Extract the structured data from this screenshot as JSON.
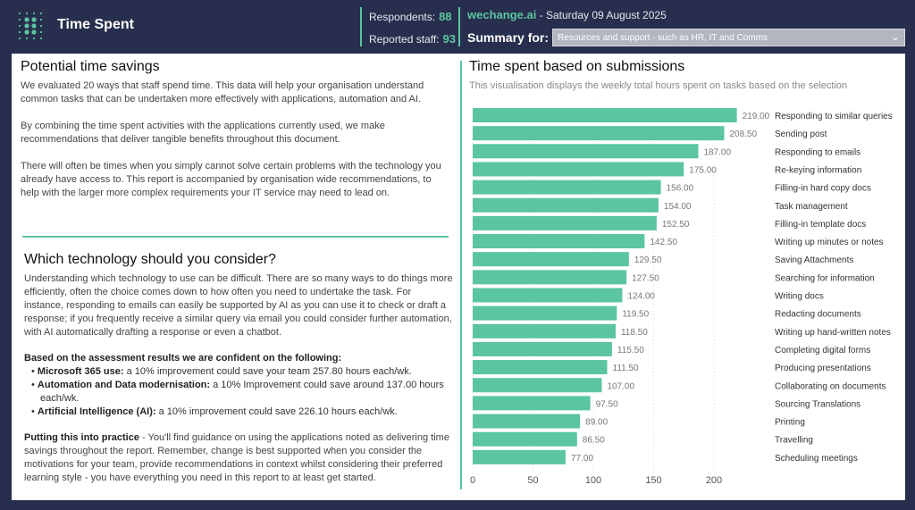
{
  "header": {
    "title": "Time Spent",
    "respondents_label": "Respondents:",
    "respondents": "88",
    "staff_label": "Reported staff:",
    "staff": "93",
    "brand": "wechange.ai",
    "date": " - Saturday 09 August 2025",
    "summary_label": "Summary for:",
    "summary_value": "Resources and support - such as HR, IT and Comms"
  },
  "colors": {
    "background": "#282e4d",
    "accent": "#5ac5a0",
    "bar": "#5ac5a0"
  },
  "left": {
    "title1": "Potential time savings",
    "p1": "We evaluated 20 ways that staff spend time. This data will help your organisation understand common tasks that can be undertaken more effectively with applications, automation and AI.",
    "p2": "By combining the time spent activities with the applications currently used, we make recommendations that deliver tangible benefits throughout this document.",
    "p3": "There will often be times when you simply cannot solve certain problems with the technology you already have access to. This report is accompanied by organisation wide recommendations, to help with the larger more complex requirements your IT service may need to lead on.",
    "title2": "Which technology should you consider?",
    "p4": "Understanding which technology to use can be difficult. There are so many ways to do things more efficiently, often the choice comes down to how often you need to undertake the task. For instance, responding to emails can easily be supported by AI as you can use it to check or draft a response; if you frequently receive a similar query via email you could consider further automation, with AI automatically drafting a response or even a chatbot.",
    "confident": "Based on the assessment results we are confident on the following:",
    "bullets": [
      {
        "bold": "Microsoft 365 use:",
        "text": " a 10% improvement could save your team 257.80 hours each/wk."
      },
      {
        "bold": "Automation and Data modernisation:",
        "text": " a 10% Improvement could save around 137.00 hours each/wk."
      },
      {
        "bold": "Artificial Intelligence (AI):",
        "text": " a 10% improvement could save 226.10 hours each/wk."
      }
    ],
    "practice_bold": "Putting this into practice",
    "practice": " - You'll find guidance on using the applications noted as delivering time savings throughout the report. Remember, change is best supported when you consider the motivations for your team, provide recommendations in context whilst considering their preferred learning style - you have everything you need in this report to at least get started."
  },
  "chart_data": {
    "type": "bar",
    "orientation": "horizontal",
    "title": "Time spent based on submissions",
    "subtitle": "This visualisation displays the weekly total hours spent on tasks based on the selection",
    "categories": [
      "Responding to similar queries",
      "Sending post",
      "Responding to emails",
      "Re-keying information",
      "Filling-in hard copy docs",
      "Task management",
      "Filling-in template docs",
      "Writing up minutes or notes",
      "Saving Attachments",
      "Searching for information",
      "Writing docs",
      "Redacting documents",
      "Writing up hand-written notes",
      "Completing digital forms",
      "Producing presentations",
      "Collaborating on documents",
      "Sourcing Translations",
      "Printing",
      "Travelling",
      "Scheduling meetings"
    ],
    "values": [
      219.0,
      208.5,
      187.0,
      175.0,
      156.0,
      154.0,
      152.5,
      142.5,
      129.5,
      127.5,
      124.0,
      119.5,
      118.5,
      115.5,
      111.5,
      107.0,
      97.5,
      89.0,
      86.5,
      77.0
    ],
    "value_labels": [
      "219.00",
      "208.50",
      "187.00",
      "175.00",
      "156.00",
      "154.00",
      "152.50",
      "142.50",
      "129.50",
      "127.50",
      "124.00",
      "119.50",
      "118.50",
      "115.50",
      "111.50",
      "107.00",
      "97.50",
      "89.00",
      "86.50",
      "77.00"
    ],
    "xticks": [
      0,
      50,
      100,
      150,
      200
    ],
    "xlim": [
      0,
      250
    ],
    "grid": true
  }
}
